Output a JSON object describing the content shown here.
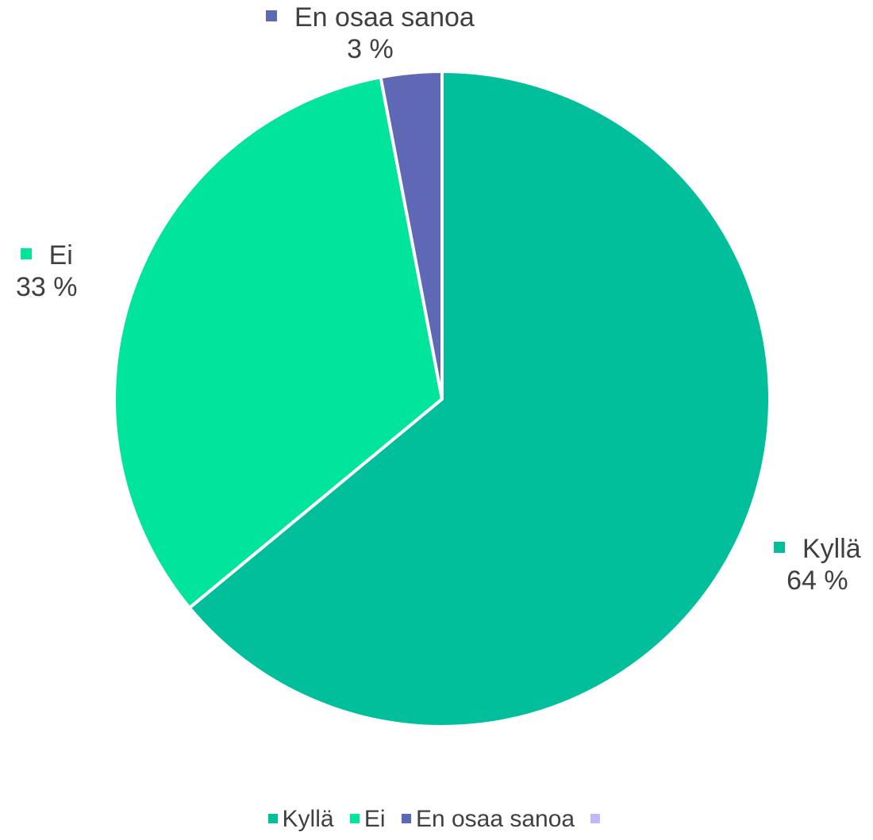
{
  "chart_data": {
    "type": "pie",
    "categories": [
      "Kyllä",
      "Ei",
      "En osaa sanoa",
      ""
    ],
    "values": [
      64,
      33,
      3,
      0
    ],
    "colors": [
      "#00bf9a",
      "#00e59b",
      "#5f68b5",
      "#c1b8f5"
    ],
    "data_labels": [
      {
        "name": "Kyllä",
        "value": "64 %"
      },
      {
        "name": "Ei",
        "value": "33 %"
      },
      {
        "name": "En osaa sanoa",
        "value": "3 %"
      }
    ],
    "legend": {
      "position": "bottom",
      "entries": [
        "Kyllä",
        "Ei",
        "En osaa sanoa",
        ""
      ]
    }
  }
}
